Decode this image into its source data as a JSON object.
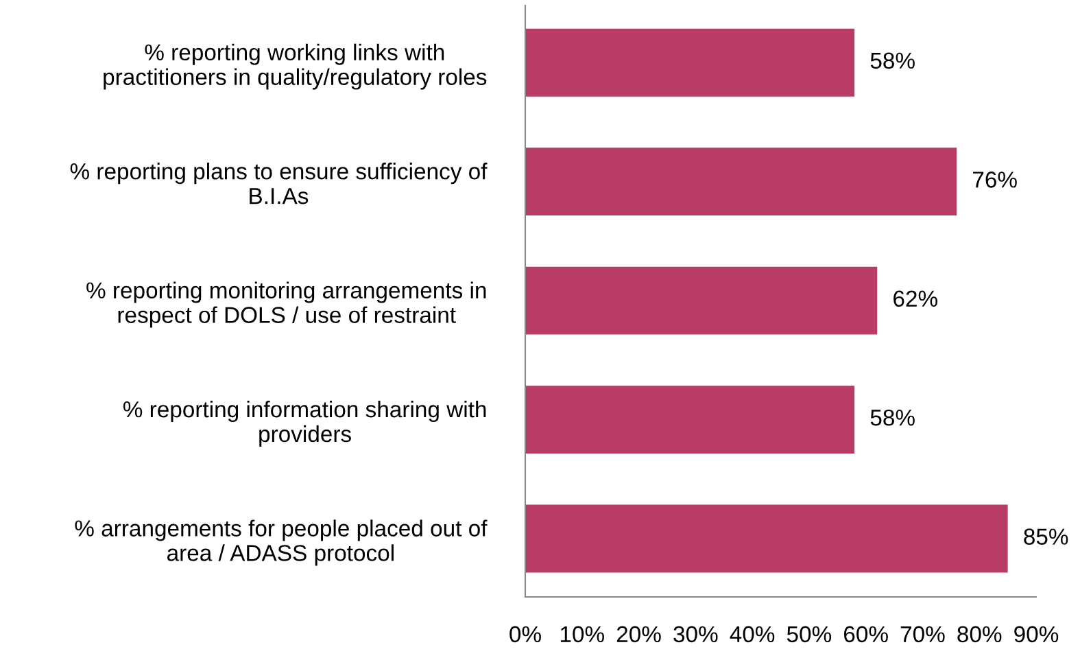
{
  "chart_data": {
    "type": "bar",
    "orientation": "horizontal",
    "categories": [
      "% reporting working links with\npractitioners in quality/regulatory roles",
      "% reporting plans to ensure sufficiency of\nB.I.As",
      "% reporting monitoring arrangements in\nrespect of DOLS / use of restraint",
      "% reporting information sharing with\nproviders",
      "% arrangements for people placed out of\narea / ADASS protocol"
    ],
    "values": [
      58,
      76,
      62,
      58,
      85
    ],
    "value_labels": [
      "58%",
      "76%",
      "62%",
      "58%",
      "85%"
    ],
    "color": "#b83c65",
    "xlim": [
      0,
      90
    ],
    "xticks": [
      {
        "value": 0,
        "label": "0%"
      },
      {
        "value": 10,
        "label": "10%"
      },
      {
        "value": 20,
        "label": "20%"
      },
      {
        "value": 30,
        "label": "30%"
      },
      {
        "value": 40,
        "label": "40%"
      },
      {
        "value": 50,
        "label": "50%"
      },
      {
        "value": 60,
        "label": "60%"
      },
      {
        "value": 70,
        "label": "70%"
      },
      {
        "value": 80,
        "label": "80%"
      },
      {
        "value": 90,
        "label": "90%"
      }
    ],
    "grid": false,
    "legend": false
  }
}
